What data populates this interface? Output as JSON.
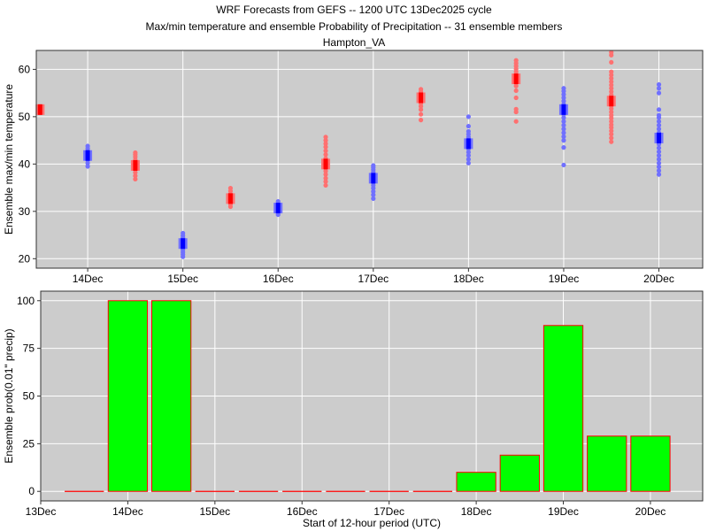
{
  "titles": {
    "line1": "WRF Forecasts from GEFS --  1200 UTC 13Dec2025  cycle",
    "line2": "Max/min temperature and ensemble Probability of Precipitation --  31 ensemble members",
    "line3": "Hampton_VA"
  },
  "colors": {
    "panel_bg": "#cccccc",
    "grid": "#ffffff",
    "max_temp_points": "#ff7070",
    "max_temp_median": "#ff0000",
    "min_temp_points": "#7070ff",
    "min_temp_median": "#0000ff",
    "bar_fill": "#00ff00",
    "bar_outline": "#ff0000"
  },
  "chart_data": [
    {
      "type": "scatter",
      "ylabel": "Ensemble max/min temperature",
      "xlabel": "",
      "ylim": [
        18,
        64
      ],
      "xlim": [
        13.46,
        20.46
      ],
      "yticks": [
        20,
        30,
        40,
        50,
        60
      ],
      "xticks": [
        {
          "value": 14,
          "label": "14Dec"
        },
        {
          "value": 15,
          "label": "15Dec"
        },
        {
          "value": 16,
          "label": "16Dec"
        },
        {
          "value": 17,
          "label": "17Dec"
        },
        {
          "value": 18,
          "label": "18Dec"
        },
        {
          "value": 19,
          "label": "19Dec"
        },
        {
          "value": 20,
          "label": "20Dec"
        }
      ],
      "grid": true,
      "series": [
        {
          "kind": "max",
          "groups": [
            {
              "x": 13.5,
              "median": 51.5,
              "members": [
                51.0,
                51.3,
                51.5,
                51.8,
                52.0
              ]
            },
            {
              "x": 14.5,
              "median": 39.7,
              "members": [
                36.8,
                37.5,
                38.2,
                38.8,
                39.2,
                39.5,
                39.7,
                40.0,
                40.4,
                40.9,
                41.5,
                42.0,
                42.4
              ]
            },
            {
              "x": 15.5,
              "median": 32.7,
              "members": [
                31.0,
                31.5,
                32.0,
                32.3,
                32.6,
                32.8,
                33.2,
                33.7,
                34.3,
                34.9
              ]
            },
            {
              "x": 16.5,
              "median": 40.0,
              "members": [
                35.5,
                36.3,
                37.0,
                37.8,
                38.5,
                39.2,
                39.7,
                40.0,
                40.5,
                41.2,
                42.0,
                42.8,
                43.6,
                44.3,
                45.0,
                45.7
              ]
            },
            {
              "x": 17.5,
              "median": 54.0,
              "members": [
                49.3,
                50.5,
                51.5,
                52.2,
                52.8,
                53.3,
                53.7,
                54.0,
                54.4,
                54.8,
                55.3,
                55.8
              ]
            },
            {
              "x": 18.5,
              "median": 58.0,
              "members": [
                49.0,
                51.0,
                51.6,
                54.0,
                55.5,
                56.5,
                57.2,
                57.7,
                58.0,
                58.4,
                58.9,
                59.5,
                60.1,
                60.7,
                61.3,
                61.9
              ]
            },
            {
              "x": 19.5,
              "median": 53.3,
              "members": [
                44.7,
                45.5,
                46.3,
                47.0,
                47.7,
                48.3,
                49.0,
                49.7,
                50.3,
                51.0,
                51.7,
                52.3,
                53.0,
                53.5,
                54.0,
                54.6,
                55.3,
                56.0,
                56.7,
                57.4,
                58.1,
                58.8,
                59.5,
                61.5,
                63.0,
                63.6
              ]
            }
          ]
        },
        {
          "kind": "min",
          "groups": [
            {
              "x": 14.0,
              "median": 41.8,
              "members": [
                39.5,
                40.2,
                40.8,
                41.3,
                41.8,
                42.3,
                42.8,
                43.3,
                43.8
              ]
            },
            {
              "x": 15.0,
              "median": 23.2,
              "members": [
                20.4,
                20.9,
                21.4,
                21.9,
                22.4,
                22.9,
                23.4,
                23.9,
                24.4,
                24.9,
                25.4
              ]
            },
            {
              "x": 16.0,
              "median": 30.7,
              "members": [
                29.3,
                29.7,
                30.1,
                30.5,
                30.9,
                31.3,
                31.7,
                32.1
              ]
            },
            {
              "x": 17.0,
              "median": 37.0,
              "members": [
                32.7,
                33.5,
                34.2,
                34.9,
                35.5,
                36.1,
                36.7,
                37.2,
                37.8,
                38.3,
                38.8,
                39.3,
                39.7
              ]
            },
            {
              "x": 18.0,
              "median": 44.3,
              "members": [
                40.2,
                41.0,
                41.8,
                42.5,
                43.2,
                43.9,
                44.5,
                45.1,
                45.7,
                46.3,
                46.9,
                48.0,
                50.0
              ]
            },
            {
              "x": 19.0,
              "median": 51.5,
              "members": [
                39.8,
                43.5,
                45.0,
                45.8,
                46.6,
                47.4,
                48.2,
                49.0,
                49.8,
                50.5,
                51.2,
                51.9,
                52.6,
                53.3,
                54.0,
                54.7,
                55.4,
                56.0
              ]
            },
            {
              "x": 20.0,
              "median": 45.5,
              "members": [
                37.8,
                38.6,
                39.4,
                40.2,
                41.0,
                41.8,
                42.6,
                43.4,
                44.2,
                45.0,
                45.8,
                46.6,
                47.4,
                48.2,
                49.0,
                49.8,
                50.3,
                51.5,
                55.0,
                56.0,
                56.8
              ]
            }
          ]
        }
      ]
    },
    {
      "type": "bar",
      "ylabel": "Ensemble prob(0.01\" precip)",
      "xlabel": "Start of 12-hour period (UTC)",
      "ylim": [
        -5,
        105
      ],
      "xlim": [
        13.0,
        20.6
      ],
      "yticks": [
        0,
        25,
        50,
        75,
        100
      ],
      "xticks": [
        {
          "value": 13,
          "label": "13Dec"
        },
        {
          "value": 14,
          "label": "14Dec"
        },
        {
          "value": 15,
          "label": "15Dec"
        },
        {
          "value": 16,
          "label": "16Dec"
        },
        {
          "value": 17,
          "label": "17Dec"
        },
        {
          "value": 18,
          "label": "18Dec"
        },
        {
          "value": 19,
          "label": "19Dec"
        },
        {
          "value": 20,
          "label": "20Dec"
        }
      ],
      "grid": true,
      "bar_width": 0.45,
      "x": [
        13.5,
        14.0,
        14.5,
        15.0,
        15.5,
        16.0,
        16.5,
        17.0,
        17.5,
        18.0,
        18.5,
        19.0,
        19.5,
        20.0
      ],
      "values": [
        0,
        100,
        100,
        0,
        0,
        0,
        0,
        0,
        0,
        10,
        19,
        87,
        29,
        29
      ]
    }
  ]
}
